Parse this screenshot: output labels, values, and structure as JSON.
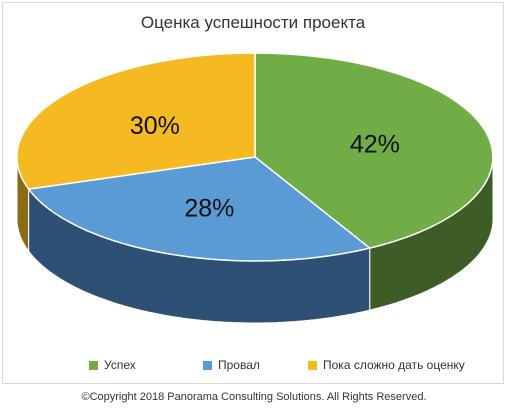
{
  "chart_data": {
    "type": "pie",
    "title": "Оценка успешности проекта",
    "slices": [
      {
        "label": "Успех",
        "value": 42,
        "value_label": "42%",
        "color": "#70ad47",
        "side_color": "#3d5c26"
      },
      {
        "label": "Провал",
        "value": 28,
        "value_label": "28%",
        "color": "#5b9bd5",
        "side_color": "#2e5075"
      },
      {
        "label": "Пока сложно дать оценку",
        "value": 30,
        "value_label": "30%",
        "color": "#f5b921",
        "side_color": "#8a6a12"
      }
    ],
    "style": "3d",
    "legend_position": "bottom"
  },
  "footer": {
    "copyright": "©Copyright 2018 Panorama Consulting Solutions.  All Rights Reserved."
  }
}
